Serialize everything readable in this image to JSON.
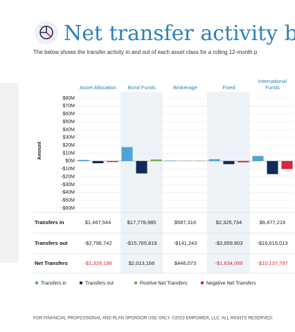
{
  "header": {
    "title": "Net transfer activity by",
    "subtitle": "The below shows the transfer activity in and out of each asset class for a rolling 12-month p"
  },
  "chart_data": {
    "type": "bar",
    "y_label": "Amount",
    "categories": [
      "Asset Allocation",
      "Bond Funds",
      "Brokerage",
      "Fixed",
      "International Funds"
    ],
    "series": [
      {
        "name": "Transfers in",
        "color": "#4ea6d4",
        "values": [
          1.467544,
          17.778985,
          0.587316,
          2.325734,
          6.477216
        ],
        "value_labels": [
          "$1,467,544",
          "$17,778,985",
          "$587,316",
          "$2,325,734",
          "$6,477,216"
        ]
      },
      {
        "name": "Transfers out",
        "color": "#0f2a5b",
        "values": [
          -2.796742,
          -15.765819,
          -0.141243,
          -3.959803,
          -16.615013
        ],
        "value_labels": [
          "-$2,796,742",
          "-$15,765,819",
          "-$141,243",
          "-$3,959,803",
          "-$16,615,013"
        ]
      },
      {
        "name": "Net Transfers",
        "positive_name": "Positive Net Transfers",
        "negative_name": "Negative Net Transfers",
        "positive_color": "#6aaf4f",
        "negative_color": "#d7263d",
        "values": [
          -1.329198,
          2.013166,
          0.446073,
          -1.634069,
          -10.137797
        ],
        "value_labels": [
          "-$1,329,198",
          "$2,013,166",
          "$446,073",
          "-$1,634,069",
          "-$10,137,797"
        ]
      }
    ],
    "ylim": [
      -60,
      80
    ],
    "yticks": [
      {
        "value": 80,
        "label": "$80M"
      },
      {
        "value": 70,
        "label": "$70M"
      },
      {
        "value": 60,
        "label": "$60M"
      },
      {
        "value": 50,
        "label": "$50M"
      },
      {
        "value": 40,
        "label": "$40M"
      },
      {
        "value": 30,
        "label": "$30M"
      },
      {
        "value": 20,
        "label": "$20M"
      },
      {
        "value": 10,
        "label": "$10M"
      },
      {
        "value": 0,
        "label": "$0M"
      },
      {
        "value": -10,
        "label": "-$10M"
      },
      {
        "value": -20,
        "label": "-$20M"
      },
      {
        "value": -30,
        "label": "-$30M"
      },
      {
        "value": -40,
        "label": "-$40M"
      },
      {
        "value": -50,
        "label": "-$50M"
      },
      {
        "value": -60,
        "label": "-$60M"
      }
    ],
    "grid": true
  },
  "footer": "FOR FINANCIAL PROFESSIONAL AND PLAN SPONSOR USE ONLY. ©2023 EMPOWER, LLC. ALL RIGHTS RESERVED."
}
